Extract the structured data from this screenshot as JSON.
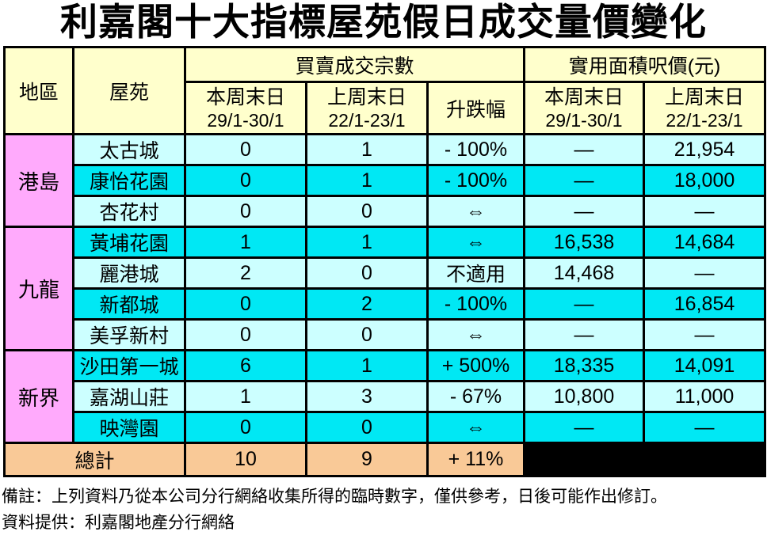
{
  "title": "利嘉閣十大指標屋苑假日成交量價變化",
  "colors": {
    "header_bg": "#FFFFCC",
    "district_bg": "#FFAAFC",
    "row_light_bg": "#CCFFFF",
    "row_bright_bg": "#00E8F4",
    "total_row_bg": "#F9C997",
    "blank_cell_bg": "#000000",
    "border": "#000000"
  },
  "table": {
    "col_headers": {
      "district": "地區",
      "estate": "屋苑",
      "tx_group": "買賣成交宗數",
      "psf_group": "實用面積呎價(元)",
      "this_week": "本周末日",
      "this_week_dates": "29/1-30/1",
      "last_week": "上周末日",
      "last_week_dates": "22/1-23/1",
      "change": "升跌幅"
    },
    "groups": [
      {
        "district": "港島",
        "rows": [
          {
            "estate": "太古城",
            "tx_this": "0",
            "tx_last": "1",
            "change": "- 100%",
            "psf_this": "—",
            "psf_last": "21,954"
          },
          {
            "estate": "康怡花園",
            "tx_this": "0",
            "tx_last": "1",
            "change": "- 100%",
            "psf_this": "—",
            "psf_last": "18,000"
          },
          {
            "estate": "杏花村",
            "tx_this": "0",
            "tx_last": "0",
            "change": "⇔",
            "psf_this": "—",
            "psf_last": "—"
          }
        ]
      },
      {
        "district": "九龍",
        "rows": [
          {
            "estate": "黃埔花園",
            "tx_this": "1",
            "tx_last": "1",
            "change": "⇔",
            "psf_this": "16,538",
            "psf_last": "14,684"
          },
          {
            "estate": "麗港城",
            "tx_this": "2",
            "tx_last": "0",
            "change": "不適用",
            "psf_this": "14,468",
            "psf_last": "—"
          },
          {
            "estate": "新都城",
            "tx_this": "0",
            "tx_last": "2",
            "change": "- 100%",
            "psf_this": "—",
            "psf_last": "16,854"
          },
          {
            "estate": "美孚新村",
            "tx_this": "0",
            "tx_last": "0",
            "change": "⇔",
            "psf_this": "—",
            "psf_last": "—"
          }
        ]
      },
      {
        "district": "新界",
        "rows": [
          {
            "estate": "沙田第一城",
            "tx_this": "6",
            "tx_last": "1",
            "change": "+ 500%",
            "psf_this": "18,335",
            "psf_last": "14,091"
          },
          {
            "estate": "嘉湖山莊",
            "tx_this": "1",
            "tx_last": "3",
            "change": "- 67%",
            "psf_this": "10,800",
            "psf_last": "11,000"
          },
          {
            "estate": "映灣園",
            "tx_this": "0",
            "tx_last": "0",
            "change": "⇔",
            "psf_this": "—",
            "psf_last": "—"
          }
        ]
      }
    ],
    "total": {
      "label": "總計",
      "tx_this": "10",
      "tx_last": "9",
      "change": "+ 11%"
    }
  },
  "notes": {
    "remark": "備註：上列資料乃從本公司分行網絡收集所得的臨時數字，僅供參考，日後可能作出修訂。",
    "source": "資料提供：利嘉閣地產分行網絡"
  }
}
